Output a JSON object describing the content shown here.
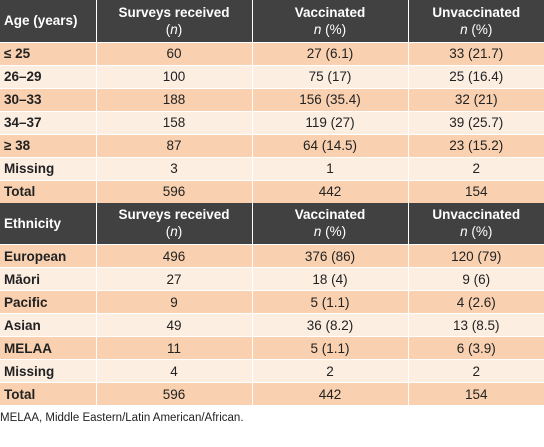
{
  "age_section": {
    "headers": [
      {
        "title": "Age (years)",
        "sub_prefix": "",
        "sub_italic": "",
        "sub_suffix": ""
      },
      {
        "title": "Surveys received",
        "sub_prefix": "(",
        "sub_italic": "n",
        "sub_suffix": ")"
      },
      {
        "title": "Vaccinated",
        "sub_prefix": "",
        "sub_italic": "n",
        "sub_suffix": " (%)"
      },
      {
        "title": "Unvaccinated",
        "sub_prefix": "",
        "sub_italic": "n",
        "sub_suffix": " (%)"
      }
    ],
    "rows": [
      {
        "label": "≤ 25",
        "received": "60",
        "vaccinated": "27 (6.1)",
        "unvaccinated": "33 (21.7)"
      },
      {
        "label": "26–29",
        "received": "100",
        "vaccinated": "75 (17)",
        "unvaccinated": "25 (16.4)"
      },
      {
        "label": "30–33",
        "received": "188",
        "vaccinated": "156 (35.4)",
        "unvaccinated": "32 (21)"
      },
      {
        "label": "34–37",
        "received": "158",
        "vaccinated": "119 (27)",
        "unvaccinated": "39 (25.7)"
      },
      {
        "label": "≥ 38",
        "received": "87",
        "vaccinated": "64 (14.5)",
        "unvaccinated": "23 (15.2)"
      },
      {
        "label": "Missing",
        "received": "3",
        "vaccinated": "1",
        "unvaccinated": "2"
      },
      {
        "label": "Total",
        "received": "596",
        "vaccinated": "442",
        "unvaccinated": "154"
      }
    ]
  },
  "ethnicity_section": {
    "headers": [
      {
        "title": "Ethnicity",
        "sub_prefix": "",
        "sub_italic": "",
        "sub_suffix": ""
      },
      {
        "title": "Surveys received",
        "sub_prefix": "(",
        "sub_italic": "n",
        "sub_suffix": ")"
      },
      {
        "title": "Vaccinated",
        "sub_prefix": "",
        "sub_italic": "n",
        "sub_suffix": " (%)"
      },
      {
        "title": "Unvaccinated",
        "sub_prefix": "",
        "sub_italic": "n",
        "sub_suffix": " (%)"
      }
    ],
    "rows": [
      {
        "label": "European",
        "received": "496",
        "vaccinated": "376 (86)",
        "unvaccinated": "120 (79)"
      },
      {
        "label": "Māori",
        "received": "27",
        "vaccinated": "18 (4)",
        "unvaccinated": "9 (6)"
      },
      {
        "label": "Pacific",
        "received": "9",
        "vaccinated": "5 (1.1)",
        "unvaccinated": "4 (2.6)"
      },
      {
        "label": "Asian",
        "received": "49",
        "vaccinated": "36 (8.2)",
        "unvaccinated": "13 (8.5)"
      },
      {
        "label": "MELAA",
        "received": "11",
        "vaccinated": "5 (1.1)",
        "unvaccinated": "6 (3.9)"
      },
      {
        "label": "Missing",
        "received": "4",
        "vaccinated": "2",
        "unvaccinated": "2"
      },
      {
        "label": "Total",
        "received": "596",
        "vaccinated": "442",
        "unvaccinated": "154"
      }
    ]
  },
  "footnote": "MELAA, Middle Eastern/Latin American/African.",
  "colors": {
    "header_bg": "#414141",
    "row_dark": "#f9d1b0",
    "row_light": "#fdeee2"
  }
}
